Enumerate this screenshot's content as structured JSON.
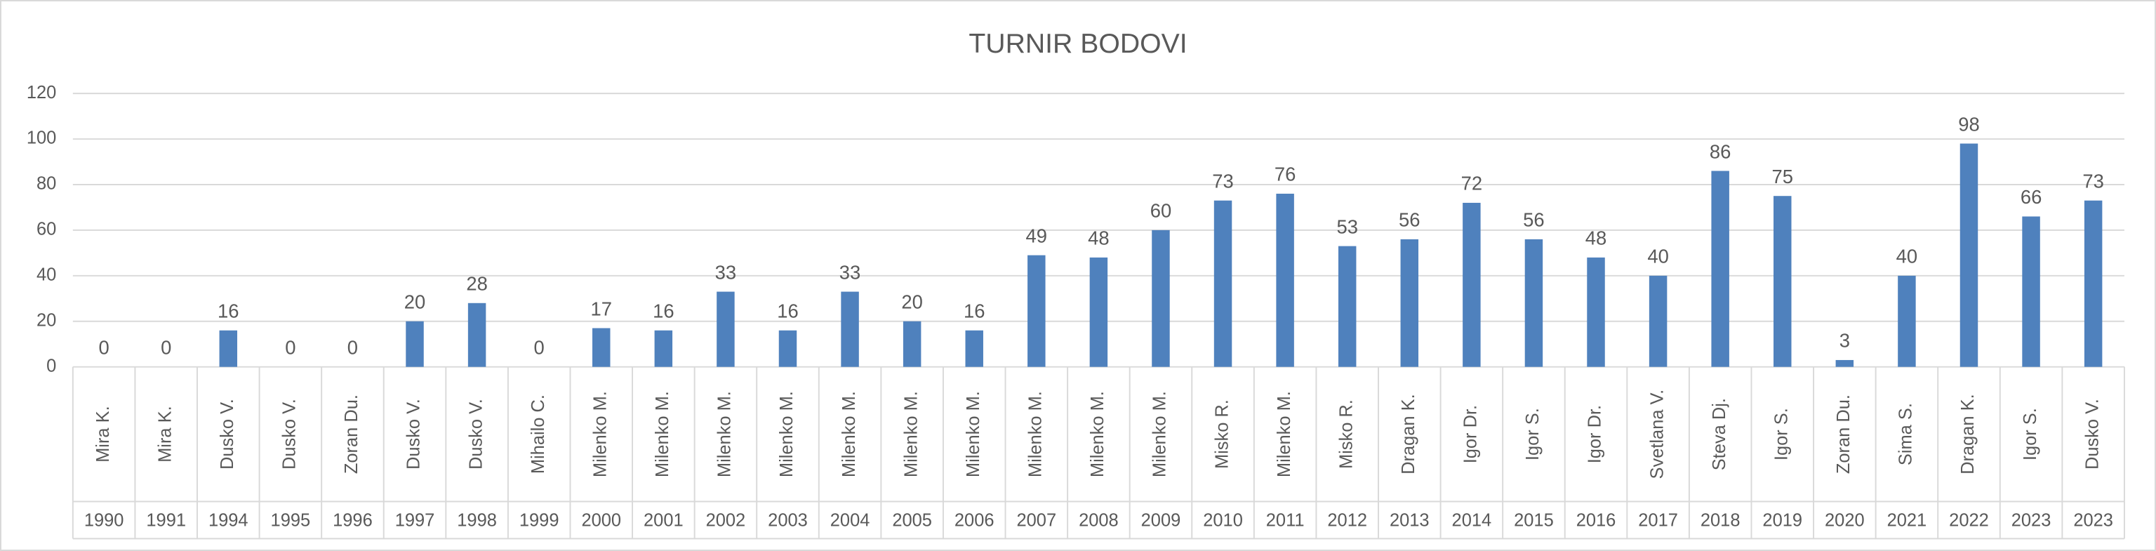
{
  "chart_data": {
    "type": "bar",
    "title": "TURNIR BODOVI",
    "categories": [
      "Mira K.",
      "Mira K.",
      "Dusko V.",
      "Dusko V.",
      "Zoran Du.",
      "Dusko V.",
      "Dusko V.",
      "Mihailo C.",
      "Milenko M.",
      "Milenko M.",
      "Milenko M.",
      "Milenko M.",
      "Milenko M.",
      "Milenko M.",
      "Milenko M.",
      "Milenko M.",
      "Milenko M.",
      "Milenko M.",
      "Misko R.",
      "Milenko M.",
      "Misko R.",
      "Dragan K.",
      "Igor Dr.",
      "Igor S.",
      "Igor Dr.",
      "Svetlana V.",
      "Steva Dj.",
      "Igor S.",
      "Zoran Du.",
      "Sima S.",
      "Dragan K.",
      "Igor S.",
      "Dusko V."
    ],
    "category_years": [
      "1990",
      "1991",
      "1994",
      "1995",
      "1996",
      "1997",
      "1998",
      "1999",
      "2000",
      "2001",
      "2002",
      "2003",
      "2004",
      "2005",
      "2006",
      "2007",
      "2008",
      "2009",
      "2010",
      "2011",
      "2012",
      "2013",
      "2014",
      "2015",
      "2016",
      "2017",
      "2018",
      "2019",
      "2020",
      "2021",
      "2022",
      "2023",
      "2023"
    ],
    "values": [
      0,
      0,
      16,
      0,
      0,
      20,
      28,
      0,
      17,
      16,
      33,
      16,
      33,
      20,
      16,
      49,
      48,
      60,
      73,
      76,
      53,
      56,
      72,
      56,
      48,
      40,
      86,
      75,
      3,
      40,
      98,
      66,
      73
    ],
    "color": "#4f81bd",
    "ylim": [
      0,
      120
    ],
    "yticks": [
      0,
      20,
      40,
      60,
      80,
      100,
      120
    ],
    "grid": true
  }
}
